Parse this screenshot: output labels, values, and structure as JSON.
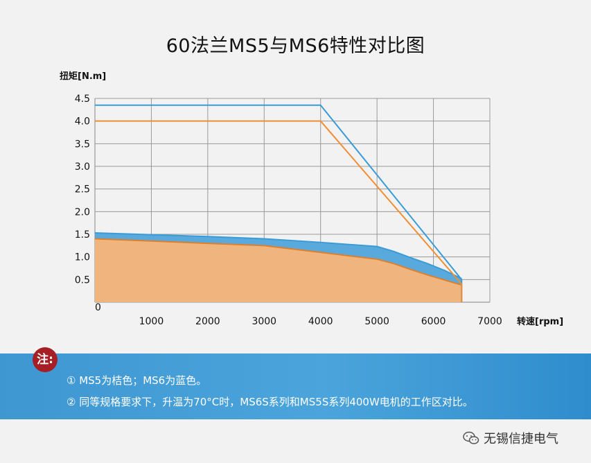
{
  "chart_data": {
    "type": "line",
    "title": "60法兰MS5与MS6特性对比图",
    "ylabel": "扭矩[N.m]",
    "xlabel": "转速[rpm]",
    "xlim": [
      0,
      7000
    ],
    "ylim": [
      0,
      4.5
    ],
    "x_ticks": [
      1000,
      2000,
      3000,
      4000,
      5000,
      6000,
      7000
    ],
    "y_ticks": [
      0.5,
      1.0,
      1.5,
      2.0,
      2.5,
      3.0,
      3.5,
      4.0,
      4.5
    ],
    "origin_label": "0",
    "grid": true,
    "series": [
      {
        "name": "MS6",
        "color": "#3a9bd6",
        "kind": "line",
        "x": [
          0,
          4000,
          6500,
          6500
        ],
        "y": [
          4.35,
          4.35,
          0.5,
          0.0
        ]
      },
      {
        "name": "MS5",
        "color": "#ef8e33",
        "kind": "line",
        "x": [
          0,
          4000,
          6500,
          6500
        ],
        "y": [
          4.0,
          4.0,
          0.4,
          0.0
        ]
      },
      {
        "name": "MS6S",
        "color": "#3a9bd6",
        "fill": "#5aa9dd",
        "kind": "area",
        "x": [
          0,
          1000,
          2000,
          3000,
          4000,
          5000,
          5300,
          5600,
          5900,
          6200,
          6500
        ],
        "y": [
          1.53,
          1.49,
          1.45,
          1.4,
          1.32,
          1.23,
          1.12,
          0.98,
          0.85,
          0.7,
          0.52
        ]
      },
      {
        "name": "MS5S",
        "color": "#e07f2a",
        "fill": "#f0b57e",
        "kind": "area",
        "x": [
          0,
          1000,
          2000,
          3000,
          4000,
          5000,
          5300,
          5600,
          5900,
          6200,
          6500
        ],
        "y": [
          1.4,
          1.35,
          1.3,
          1.25,
          1.1,
          0.95,
          0.85,
          0.72,
          0.6,
          0.49,
          0.38
        ]
      }
    ]
  },
  "notes": {
    "badge": "注:",
    "line1": "① MS5为桔色；MS6为蓝色。",
    "line2": "② 同等规格要求下，升温为70°C时，MS6S系列和MS5S系列400W电机的工作区对比。"
  },
  "watermark": {
    "text": "无锡信捷电气",
    "icon": "wechat-icon"
  }
}
